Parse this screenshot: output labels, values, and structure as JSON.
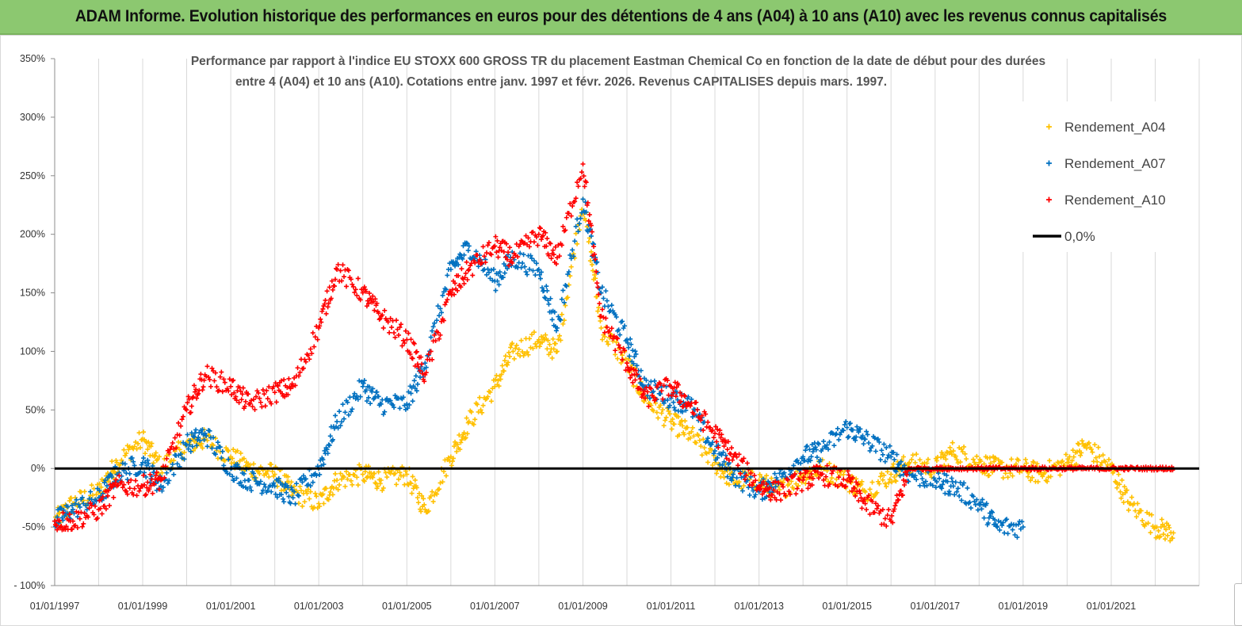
{
  "header": {
    "title": "ADAM Informe. Evolution historique des performances en euros pour des détentions de 4 ans (A04) à 10 ans (A10) avec les revenus connus capitalisés"
  },
  "colors": {
    "a04": "#ffc000",
    "a07": "#0070c0",
    "a10": "#ff0000",
    "zero": "#000000",
    "grid": "#d9d9d9",
    "banner": "#8cc870"
  },
  "chart_data": {
    "type": "scatter",
    "title_lines": [
      "Performance par rapport à l'indice EU STOXX 600 GROSS TR  du placement Eastman Chemical Co en fonction de la date de début pour des durées",
      "entre 4 (A04) et 10 ans (A10). Cotations entre janv. 1997 et févr. 2026. Revenus CAPITALISES depuis mars. 1997."
    ],
    "xlabel": "",
    "ylabel": "",
    "y_unit": "%",
    "ylim": [
      -100,
      350
    ],
    "yticks": [
      -100,
      -50,
      0,
      50,
      100,
      150,
      200,
      250,
      300,
      350
    ],
    "ytick_labels": [
      "- 100%",
      "-50%",
      "0%",
      "50%",
      "100%",
      "150%",
      "200%",
      "250%",
      "300%",
      "350%"
    ],
    "xlim": [
      "1997-01-01",
      "2023-01-01"
    ],
    "xtick_labels": [
      "01/01/1997",
      "01/01/1999",
      "01/01/2001",
      "01/01/2003",
      "01/01/2005",
      "01/01/2007",
      "01/01/2009",
      "01/01/2011",
      "01/01/2013",
      "01/01/2015",
      "01/01/2017",
      "01/01/2019",
      "01/01/2021"
    ],
    "grid": "vertical",
    "legend_position": "top-right",
    "legend": [
      "Rendement_A04",
      "Rendement_A07",
      "Rendement_A10",
      "0,0%"
    ],
    "series": [
      {
        "name": "Rendement_A04",
        "marker": "plus",
        "x": [
          "1997-01",
          "1997-06",
          "1998-01",
          "1998-06",
          "1999-01",
          "1999-06",
          "2000-01",
          "2000-06",
          "2001-01",
          "2001-06",
          "2002-01",
          "2002-06",
          "2003-01",
          "2003-06",
          "2004-01",
          "2004-06",
          "2005-01",
          "2005-06",
          "2006-01",
          "2006-06",
          "2007-01",
          "2007-06",
          "2008-01",
          "2008-06",
          "2009-01",
          "2009-06",
          "2010-01",
          "2010-06",
          "2011-01",
          "2011-06",
          "2012-01",
          "2012-06",
          "2013-01",
          "2013-06",
          "2014-01",
          "2014-06",
          "2015-01",
          "2015-06",
          "2016-01",
          "2016-06",
          "2017-01",
          "2017-06",
          "2018-01",
          "2018-06",
          "2019-01",
          "2019-06",
          "2020-01",
          "2020-06",
          "2021-01",
          "2021-06",
          "2022-01",
          "2022-06"
        ],
        "y": [
          -45,
          -30,
          -20,
          5,
          25,
          0,
          20,
          25,
          10,
          0,
          -5,
          -20,
          -30,
          -10,
          -5,
          -10,
          -5,
          -35,
          10,
          40,
          70,
          100,
          110,
          100,
          230,
          120,
          90,
          60,
          40,
          30,
          5,
          -10,
          -10,
          -20,
          -5,
          0,
          -10,
          -20,
          -5,
          5,
          0,
          15,
          5,
          0,
          0,
          -5,
          5,
          20,
          0,
          -30,
          -50,
          -55
        ]
      },
      {
        "name": "Rendement_A07",
        "marker": "plus",
        "x": [
          "1997-01",
          "1997-06",
          "1998-01",
          "1998-06",
          "1999-01",
          "1999-06",
          "2000-01",
          "2000-06",
          "2001-01",
          "2001-06",
          "2002-01",
          "2002-06",
          "2003-01",
          "2003-06",
          "2004-01",
          "2004-06",
          "2005-01",
          "2005-06",
          "2006-01",
          "2006-06",
          "2007-01",
          "2007-06",
          "2008-01",
          "2008-06",
          "2009-01",
          "2009-06",
          "2010-01",
          "2010-06",
          "2011-01",
          "2011-06",
          "2012-01",
          "2012-06",
          "2013-01",
          "2013-06",
          "2014-01",
          "2014-06",
          "2015-01",
          "2015-06",
          "2016-01",
          "2016-06",
          "2017-01",
          "2017-06",
          "2018-01",
          "2018-06",
          "2019-01"
        ],
        "y": [
          -45,
          -35,
          -25,
          -5,
          5,
          -15,
          20,
          30,
          0,
          -10,
          -15,
          -25,
          0,
          40,
          70,
          55,
          55,
          90,
          170,
          190,
          160,
          180,
          170,
          120,
          230,
          150,
          110,
          70,
          60,
          55,
          15,
          -5,
          -20,
          -10,
          10,
          15,
          35,
          25,
          10,
          -5,
          -10,
          -15,
          -30,
          -50,
          -50
        ]
      },
      {
        "name": "Rendement_A10",
        "marker": "plus",
        "x": [
          "1997-01",
          "1997-06",
          "1998-01",
          "1998-06",
          "1999-01",
          "1999-06",
          "2000-01",
          "2000-06",
          "2001-01",
          "2001-06",
          "2002-01",
          "2002-06",
          "2003-01",
          "2003-06",
          "2004-01",
          "2004-06",
          "2005-01",
          "2005-06",
          "2006-01",
          "2006-06",
          "2007-01",
          "2007-06",
          "2008-01",
          "2008-06",
          "2009-01",
          "2009-06",
          "2010-01",
          "2010-06",
          "2011-01",
          "2011-06",
          "2012-01",
          "2012-06",
          "2013-01",
          "2013-06",
          "2014-01",
          "2014-06",
          "2015-01",
          "2015-06",
          "2016-01",
          "2016-06",
          "2017-01",
          "2017-06",
          "2018-01",
          "2018-06",
          "2019-01",
          "2019-06",
          "2020-01",
          "2020-06",
          "2021-01",
          "2021-06",
          "2022-01",
          "2022-06"
        ],
        "y": [
          -45,
          -45,
          -35,
          -15,
          -15,
          -10,
          50,
          80,
          70,
          55,
          65,
          70,
          120,
          170,
          150,
          130,
          110,
          80,
          150,
          170,
          190,
          180,
          200,
          180,
          260,
          130,
          90,
          60,
          70,
          55,
          30,
          10,
          -15,
          -20,
          -10,
          -5,
          -10,
          -30,
          -45,
          0,
          0,
          0,
          0,
          0,
          0,
          0,
          0,
          0,
          0,
          0,
          0,
          0
        ]
      },
      {
        "name": "0,0%",
        "type": "line",
        "x": [
          "1997-01-01",
          "2023-01-01"
        ],
        "y": [
          0,
          0
        ]
      }
    ]
  }
}
